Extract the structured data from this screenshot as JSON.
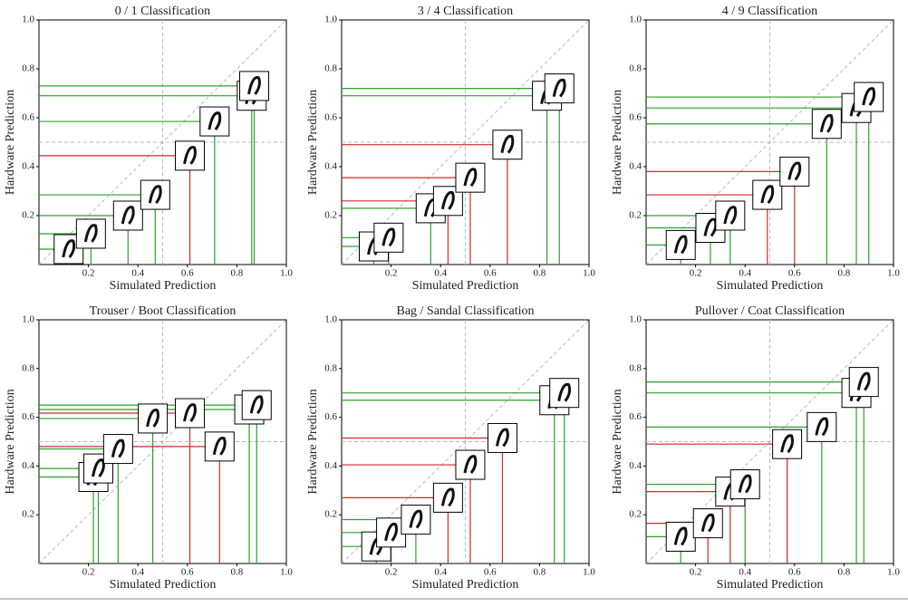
{
  "chart_data": [
    {
      "type": "scatter",
      "title": "0 / 1 Classification",
      "xlabel": "Simulated Prediction",
      "ylabel": "Hardware Prediction",
      "x": [
        0.12,
        0.21,
        0.36,
        0.47,
        0.61,
        0.71,
        0.86,
        0.87
      ],
      "values": [
        0.063,
        0.126,
        0.2,
        0.285,
        0.445,
        0.585,
        0.69,
        0.73
      ],
      "point_colors": [
        "#2ca02c",
        "#2ca02c",
        "#2ca02c",
        "#2ca02c",
        "#d62728",
        "#2ca02c",
        "#2ca02c",
        "#2ca02c"
      ],
      "xlim": [
        0,
        1
      ],
      "ylim": [
        0,
        1
      ],
      "xticks": [
        0.2,
        0.4,
        0.6,
        0.8,
        {
          "value": 1,
          "label": "1.0"
        }
      ],
      "yticks": [
        0.2,
        0.4,
        0.6,
        0.8,
        {
          "value": 1,
          "label": "1.0"
        }
      ],
      "guide": 0.5,
      "diagonal": true
    },
    {
      "type": "scatter",
      "title": "3 / 4 Classification",
      "xlabel": "Simulated Prediction",
      "ylabel": "Hardware Prediction",
      "x": [
        0.13,
        0.19,
        0.36,
        0.43,
        0.52,
        0.67,
        0.83,
        0.88
      ],
      "values": [
        0.074,
        0.11,
        0.23,
        0.26,
        0.355,
        0.49,
        0.69,
        0.72
      ],
      "point_colors": [
        "#2ca02c",
        "#2ca02c",
        "#2ca02c",
        "#d62728",
        "#d62728",
        "#d62728",
        "#2ca02c",
        "#2ca02c"
      ],
      "xlim": [
        0,
        1
      ],
      "ylim": [
        0,
        1
      ],
      "xticks": [
        0.2,
        0.4,
        0.6,
        0.8,
        {
          "value": 1,
          "label": "1.0"
        }
      ],
      "yticks": [
        0.2,
        0.4,
        0.6,
        0.8,
        {
          "value": 1,
          "label": "1.0"
        }
      ],
      "guide": 0.5,
      "diagonal": true
    },
    {
      "type": "scatter",
      "title": "4 / 9 Classification",
      "xlabel": "Simulated Prediction",
      "ylabel": "Hardware Prediction",
      "x": [
        0.14,
        0.26,
        0.34,
        0.49,
        0.6,
        0.73,
        0.85,
        0.9
      ],
      "values": [
        0.08,
        0.15,
        0.2,
        0.285,
        0.38,
        0.575,
        0.64,
        0.685
      ],
      "point_colors": [
        "#2ca02c",
        "#2ca02c",
        "#2ca02c",
        "#d62728",
        "#d62728",
        "#2ca02c",
        "#2ca02c",
        "#2ca02c"
      ],
      "xlim": [
        0,
        1
      ],
      "ylim": [
        0,
        1
      ],
      "xticks": [
        0.2,
        0.4,
        0.6,
        0.8,
        {
          "value": 1,
          "label": "1.0"
        }
      ],
      "yticks": [
        0.2,
        0.4,
        0.6,
        0.8,
        {
          "value": 1,
          "label": "1.0"
        }
      ],
      "guide": 0.5,
      "diagonal": true
    },
    {
      "type": "scatter",
      "title": "Trouser / Boot Classification",
      "xlabel": "Simulated Prediction",
      "ylabel": "Hardware Prediction",
      "x": [
        0.22,
        0.24,
        0.32,
        0.46,
        0.61,
        0.73,
        0.85,
        0.88
      ],
      "values": [
        0.355,
        0.39,
        0.47,
        0.595,
        0.617,
        0.48,
        0.632,
        0.65
      ],
      "point_colors": [
        "#2ca02c",
        "#2ca02c",
        "#2ca02c",
        "#2ca02c",
        "#d62728",
        "#d62728",
        "#2ca02c",
        "#2ca02c"
      ],
      "xlim": [
        0,
        1
      ],
      "ylim": [
        0,
        1
      ],
      "xticks": [
        0.2,
        0.4,
        0.6,
        0.8,
        {
          "value": 1,
          "label": "1.0"
        }
      ],
      "yticks": [
        0.2,
        0.4,
        0.6,
        0.8,
        {
          "value": 1,
          "label": "1.0"
        }
      ],
      "guide": 0.5,
      "diagonal": true
    },
    {
      "type": "scatter",
      "title": "Bag / Sandal Classification",
      "xlabel": "Simulated Prediction",
      "ylabel": "Hardware Prediction",
      "x": [
        0.14,
        0.2,
        0.3,
        0.43,
        0.52,
        0.65,
        0.86,
        0.9
      ],
      "values": [
        0.07,
        0.127,
        0.18,
        0.27,
        0.405,
        0.515,
        0.67,
        0.7
      ],
      "point_colors": [
        "#2ca02c",
        "#2ca02c",
        "#2ca02c",
        "#d62728",
        "#d62728",
        "#d62728",
        "#2ca02c",
        "#2ca02c"
      ],
      "xlim": [
        0,
        1
      ],
      "ylim": [
        0,
        1
      ],
      "xticks": [
        0.2,
        0.4,
        0.6,
        0.8,
        {
          "value": 1,
          "label": "1.0"
        }
      ],
      "yticks": [
        0.2,
        0.4,
        0.6,
        0.8,
        {
          "value": 1,
          "label": "1.0"
        }
      ],
      "guide": 0.5,
      "diagonal": true
    },
    {
      "type": "scatter",
      "title": "Pullover / Coat Classification",
      "xlabel": "Simulated Prediction",
      "ylabel": "Hardware Prediction",
      "x": [
        0.14,
        0.25,
        0.34,
        0.4,
        0.57,
        0.71,
        0.85,
        0.88
      ],
      "values": [
        0.11,
        0.165,
        0.295,
        0.325,
        0.49,
        0.56,
        0.7,
        0.745
      ],
      "point_colors": [
        "#2ca02c",
        "#d62728",
        "#d62728",
        "#2ca02c",
        "#d62728",
        "#2ca02c",
        "#2ca02c",
        "#2ca02c"
      ],
      "xlim": [
        0,
        1
      ],
      "ylim": [
        0,
        1
      ],
      "xticks": [
        0.2,
        0.4,
        0.6,
        0.8,
        {
          "value": 1,
          "label": "1.0"
        }
      ],
      "yticks": [
        0.2,
        0.4,
        0.6,
        0.8,
        {
          "value": 1,
          "label": "1.0"
        }
      ],
      "guide": 0.5,
      "diagonal": true
    }
  ]
}
